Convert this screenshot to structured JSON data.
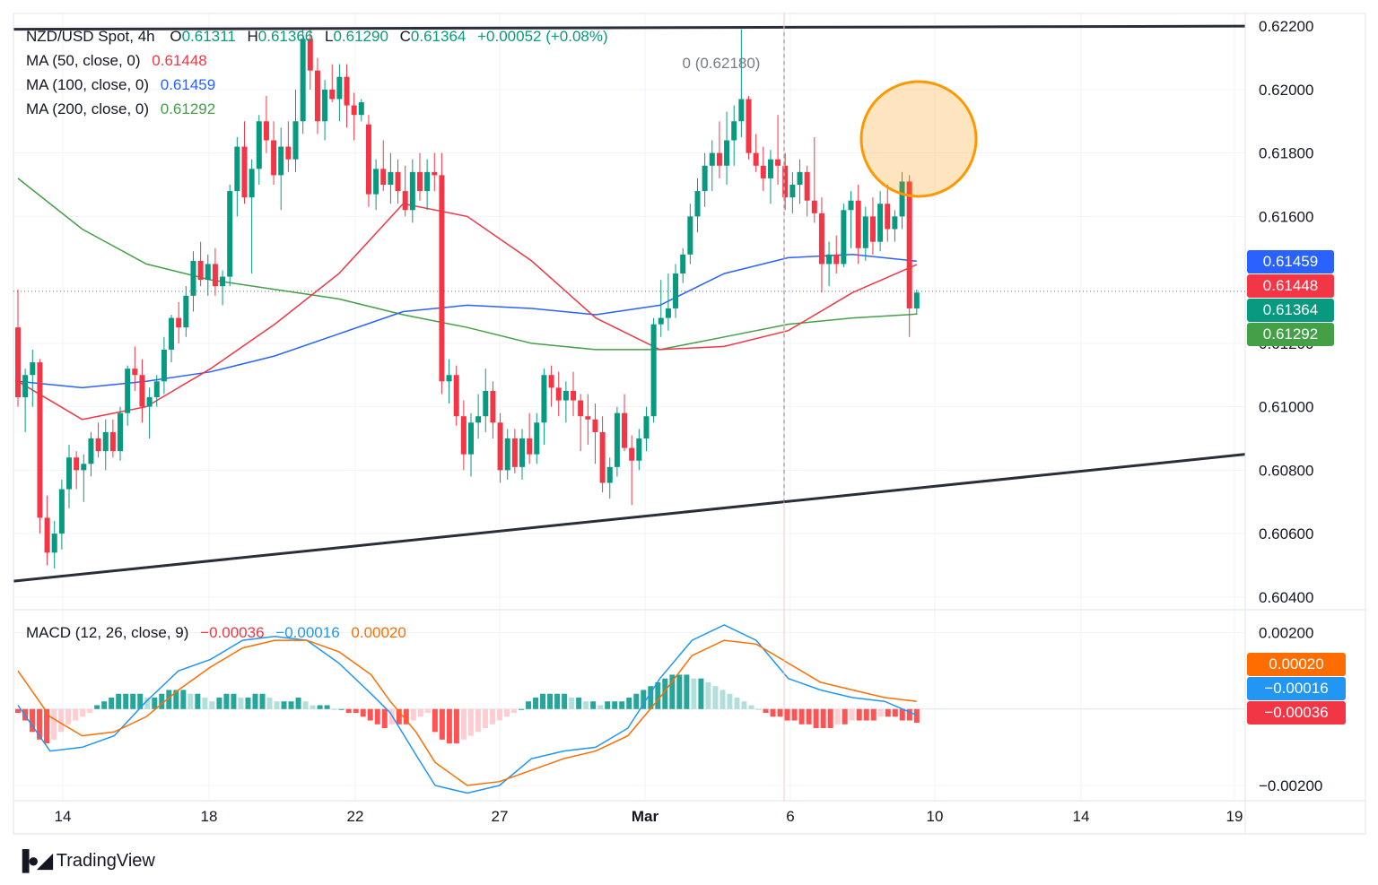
{
  "header": {
    "symbol": "NZD/USD Spot, 4h",
    "open_label": "O",
    "open": "0.61311",
    "high_label": "H",
    "high": "0.61366",
    "low_label": "L",
    "low": "0.61290",
    "close_label": "C",
    "close": "0.61364",
    "change": "+0.00052 (+0.08%)"
  },
  "indicators": {
    "ma50": {
      "label": "MA (50, close, 0)",
      "value": "0.61448",
      "color": "#f23645"
    },
    "ma100": {
      "label": "MA (100, close, 0)",
      "value": "0.61459",
      "color": "#2962ff"
    },
    "ma200": {
      "label": "MA (200, close, 0)",
      "value": "0.61292",
      "color": "#43a047"
    },
    "macd": {
      "label": "MACD (12, 26, close, 9)",
      "hist": "−0.00036",
      "macd": "−0.00016",
      "signal": "0.00020"
    }
  },
  "level_label": "0 (0.62180)",
  "price_axis": {
    "ticks": [
      "0.62200",
      "0.62000",
      "0.61800",
      "0.61600",
      "0.61200",
      "0.61000",
      "0.60800",
      "0.60600",
      "0.60400"
    ],
    "badges": [
      {
        "name": "ma100-badge",
        "text": "0.61459",
        "color": "#2962ff"
      },
      {
        "name": "ma50-badge",
        "text": "0.61448",
        "color": "#f23645"
      },
      {
        "name": "last-price-badge",
        "text": "0.61364",
        "color": "#089981"
      },
      {
        "name": "ma200-badge",
        "text": "0.61292",
        "color": "#43a047"
      }
    ]
  },
  "macd_axis": {
    "ticks": [
      "0.00200",
      "−0.00200"
    ],
    "badges": [
      {
        "name": "signal-badge",
        "text": "0.00020",
        "color": "#ff6d00"
      },
      {
        "name": "macd-line-badge",
        "text": "−0.00016",
        "color": "#2196f3"
      },
      {
        "name": "histogram-badge",
        "text": "−0.00036",
        "color": "#f23645"
      }
    ]
  },
  "time_axis": [
    "14",
    "18",
    "22",
    "27",
    "Mar",
    "6",
    "10",
    "14",
    "19"
  ],
  "brand": "TradingView",
  "chart_data": {
    "type": "candlestick",
    "instrument": "NZD/USD Spot",
    "timeframe": "4h",
    "ylim": [
      0.6036,
      0.6224
    ],
    "candles": [
      [
        0.6125,
        0.6137,
        0.61,
        0.6103
      ],
      [
        0.6103,
        0.6112,
        0.6092,
        0.611
      ],
      [
        0.611,
        0.6118,
        0.61,
        0.6114
      ],
      [
        0.6114,
        0.6115,
        0.606,
        0.6065
      ],
      [
        0.6065,
        0.6072,
        0.605,
        0.6054
      ],
      [
        0.6054,
        0.6064,
        0.6049,
        0.606
      ],
      [
        0.606,
        0.6077,
        0.6055,
        0.6074
      ],
      [
        0.6074,
        0.6088,
        0.6068,
        0.6084
      ],
      [
        0.6084,
        0.6086,
        0.6074,
        0.608
      ],
      [
        0.608,
        0.6085,
        0.607,
        0.6082
      ],
      [
        0.6082,
        0.6092,
        0.6078,
        0.609
      ],
      [
        0.609,
        0.6095,
        0.6084,
        0.6086
      ],
      [
        0.6086,
        0.6096,
        0.608,
        0.6092
      ],
      [
        0.6092,
        0.6096,
        0.6084,
        0.6086
      ],
      [
        0.6086,
        0.61,
        0.6083,
        0.6098
      ],
      [
        0.6098,
        0.6113,
        0.6094,
        0.6112
      ],
      [
        0.6112,
        0.6119,
        0.6105,
        0.611
      ],
      [
        0.611,
        0.6115,
        0.6095,
        0.61
      ],
      [
        0.61,
        0.6106,
        0.609,
        0.6103
      ],
      [
        0.6103,
        0.611,
        0.61,
        0.6108
      ],
      [
        0.6108,
        0.6122,
        0.6104,
        0.6118
      ],
      [
        0.6118,
        0.6129,
        0.6114,
        0.6128
      ],
      [
        0.6128,
        0.6133,
        0.612,
        0.6125
      ],
      [
        0.6125,
        0.6138,
        0.6122,
        0.6135
      ],
      [
        0.6135,
        0.6149,
        0.613,
        0.6146
      ],
      [
        0.6146,
        0.6152,
        0.6138,
        0.614
      ],
      [
        0.614,
        0.6148,
        0.6135,
        0.6145
      ],
      [
        0.6145,
        0.615,
        0.6135,
        0.6138
      ],
      [
        0.6138,
        0.6143,
        0.6132,
        0.6141
      ],
      [
        0.6141,
        0.617,
        0.6138,
        0.6168
      ],
      [
        0.6168,
        0.6185,
        0.616,
        0.6182
      ],
      [
        0.6182,
        0.619,
        0.6164,
        0.6166
      ],
      [
        0.6166,
        0.6178,
        0.6142,
        0.6175
      ],
      [
        0.6175,
        0.6192,
        0.617,
        0.619
      ],
      [
        0.619,
        0.6198,
        0.618,
        0.6184
      ],
      [
        0.6184,
        0.619,
        0.617,
        0.6173
      ],
      [
        0.6173,
        0.6188,
        0.6162,
        0.6182
      ],
      [
        0.6182,
        0.619,
        0.6174,
        0.6178
      ],
      [
        0.6178,
        0.62,
        0.6174,
        0.619
      ],
      [
        0.619,
        0.6219,
        0.6186,
        0.6216
      ],
      [
        0.6216,
        0.6219,
        0.62,
        0.6206
      ],
      [
        0.6206,
        0.621,
        0.6186,
        0.619
      ],
      [
        0.619,
        0.6203,
        0.6184,
        0.62
      ],
      [
        0.62,
        0.6208,
        0.6196,
        0.6197
      ],
      [
        0.6197,
        0.6208,
        0.619,
        0.6204
      ],
      [
        0.6204,
        0.6208,
        0.6188,
        0.6195
      ],
      [
        0.6195,
        0.6199,
        0.6184,
        0.6192
      ],
      [
        0.6192,
        0.6197,
        0.619,
        0.6196
      ],
      [
        0.6189,
        0.6192,
        0.6163,
        0.6167
      ],
      [
        0.6167,
        0.6178,
        0.6162,
        0.6175
      ],
      [
        0.6175,
        0.6184,
        0.6168,
        0.617
      ],
      [
        0.617,
        0.618,
        0.6164,
        0.6174
      ],
      [
        0.6174,
        0.6178,
        0.6164,
        0.6168
      ],
      [
        0.6168,
        0.6176,
        0.616,
        0.6162
      ],
      [
        0.6162,
        0.6178,
        0.6158,
        0.6174
      ],
      [
        0.6174,
        0.618,
        0.6165,
        0.6168
      ],
      [
        0.6168,
        0.6178,
        0.6162,
        0.6174
      ],
      [
        0.6174,
        0.618,
        0.6168,
        0.6173
      ],
      [
        0.6173,
        0.618,
        0.6104,
        0.6108
      ],
      [
        0.6108,
        0.6115,
        0.6101,
        0.611
      ],
      [
        0.611,
        0.6113,
        0.6094,
        0.6097
      ],
      [
        0.6097,
        0.6102,
        0.608,
        0.6085
      ],
      [
        0.6085,
        0.6098,
        0.6078,
        0.6095
      ],
      [
        0.6095,
        0.6104,
        0.609,
        0.6097
      ],
      [
        0.6097,
        0.6112,
        0.6092,
        0.6105
      ],
      [
        0.6105,
        0.6108,
        0.609,
        0.6095
      ],
      [
        0.6095,
        0.6098,
        0.6076,
        0.608
      ],
      [
        0.608,
        0.6093,
        0.6077,
        0.609
      ],
      [
        0.609,
        0.6093,
        0.6079,
        0.6081
      ],
      [
        0.6081,
        0.6093,
        0.6077,
        0.609
      ],
      [
        0.609,
        0.6098,
        0.6082,
        0.6085
      ],
      [
        0.6085,
        0.6098,
        0.6082,
        0.6095
      ],
      [
        0.6095,
        0.6112,
        0.6088,
        0.611
      ],
      [
        0.611,
        0.6113,
        0.61,
        0.6106
      ],
      [
        0.6106,
        0.6111,
        0.6097,
        0.6102
      ],
      [
        0.6102,
        0.6108,
        0.6095,
        0.6105
      ],
      [
        0.6105,
        0.6111,
        0.6097,
        0.6102
      ],
      [
        0.6102,
        0.6104,
        0.6086,
        0.6097
      ],
      [
        0.6097,
        0.6104,
        0.6088,
        0.6096
      ],
      [
        0.6096,
        0.6101,
        0.6082,
        0.6092
      ],
      [
        0.6092,
        0.6097,
        0.6073,
        0.6076
      ],
      [
        0.6076,
        0.6084,
        0.6071,
        0.6081
      ],
      [
        0.6081,
        0.61,
        0.6078,
        0.6098
      ],
      [
        0.6098,
        0.6104,
        0.6086,
        0.6087
      ],
      [
        0.6087,
        0.6091,
        0.6069,
        0.6083
      ],
      [
        0.6083,
        0.6093,
        0.608,
        0.609
      ],
      [
        0.609,
        0.61,
        0.6086,
        0.6097
      ],
      [
        0.6097,
        0.6128,
        0.6095,
        0.6126
      ],
      [
        0.6126,
        0.614,
        0.6122,
        0.6128
      ],
      [
        0.6128,
        0.6142,
        0.6124,
        0.6131
      ],
      [
        0.6131,
        0.6145,
        0.6128,
        0.6142
      ],
      [
        0.6142,
        0.615,
        0.6139,
        0.6148
      ],
      [
        0.6148,
        0.6164,
        0.6145,
        0.616
      ],
      [
        0.616,
        0.6172,
        0.6155,
        0.6168
      ],
      [
        0.6168,
        0.618,
        0.6163,
        0.6176
      ],
      [
        0.6176,
        0.6184,
        0.6168,
        0.618
      ],
      [
        0.618,
        0.619,
        0.6172,
        0.6176
      ],
      [
        0.6176,
        0.6193,
        0.617,
        0.6184
      ],
      [
        0.6184,
        0.6195,
        0.6176,
        0.619
      ],
      [
        0.619,
        0.6219,
        0.6185,
        0.6197
      ],
      [
        0.6197,
        0.6198,
        0.6178,
        0.618
      ],
      [
        0.618,
        0.6186,
        0.6174,
        0.6176
      ],
      [
        0.6176,
        0.6182,
        0.6168,
        0.6172
      ],
      [
        0.6172,
        0.6181,
        0.6164,
        0.6178
      ],
      [
        0.6178,
        0.6192,
        0.617,
        0.6176
      ],
      [
        0.6176,
        0.618,
        0.6162,
        0.6166
      ],
      [
        0.6166,
        0.6174,
        0.6161,
        0.617
      ],
      [
        0.617,
        0.6178,
        0.6164,
        0.6174
      ],
      [
        0.6174,
        0.6176,
        0.616,
        0.6165
      ],
      [
        0.6165,
        0.6185,
        0.6158,
        0.6161
      ],
      [
        0.6161,
        0.6166,
        0.6136,
        0.6145
      ],
      [
        0.6145,
        0.6152,
        0.6138,
        0.6148
      ],
      [
        0.6148,
        0.6154,
        0.6142,
        0.6145
      ],
      [
        0.6145,
        0.6164,
        0.6144,
        0.6162
      ],
      [
        0.6162,
        0.6168,
        0.615,
        0.6165
      ],
      [
        0.6165,
        0.617,
        0.6145,
        0.615
      ],
      [
        0.615,
        0.6163,
        0.6146,
        0.616
      ],
      [
        0.616,
        0.6166,
        0.6148,
        0.6152
      ],
      [
        0.6152,
        0.6168,
        0.6149,
        0.6164
      ],
      [
        0.6164,
        0.617,
        0.6152,
        0.6156
      ],
      [
        0.6156,
        0.6162,
        0.6152,
        0.616
      ],
      [
        0.616,
        0.6174,
        0.6156,
        0.6171
      ],
      [
        0.6171,
        0.6173,
        0.6122,
        0.6131
      ],
      [
        0.6131,
        0.6137,
        0.6129,
        0.6136
      ]
    ],
    "ma50": [
      [
        0,
        0.6108
      ],
      [
        10,
        0.6096
      ],
      [
        20,
        0.61
      ],
      [
        30,
        0.6112
      ],
      [
        40,
        0.6126
      ],
      [
        50,
        0.6142
      ],
      [
        60,
        0.6164
      ],
      [
        70,
        0.616
      ],
      [
        80,
        0.6146
      ],
      [
        90,
        0.6128
      ],
      [
        100,
        0.6118
      ],
      [
        110,
        0.6119
      ],
      [
        120,
        0.6124
      ],
      [
        130,
        0.6136
      ],
      [
        140,
        0.61448
      ]
    ],
    "ma100": [
      [
        0,
        0.6108
      ],
      [
        10,
        0.6106
      ],
      [
        20,
        0.6108
      ],
      [
        30,
        0.6111
      ],
      [
        40,
        0.6116
      ],
      [
        50,
        0.6123
      ],
      [
        60,
        0.613
      ],
      [
        70,
        0.6132
      ],
      [
        80,
        0.6131
      ],
      [
        90,
        0.6129
      ],
      [
        100,
        0.6132
      ],
      [
        110,
        0.6142
      ],
      [
        120,
        0.6147
      ],
      [
        130,
        0.6148
      ],
      [
        140,
        0.61459
      ]
    ],
    "ma200": [
      [
        0,
        0.6172
      ],
      [
        10,
        0.6156
      ],
      [
        20,
        0.6145
      ],
      [
        30,
        0.614
      ],
      [
        40,
        0.6137
      ],
      [
        50,
        0.6134
      ],
      [
        60,
        0.6129
      ],
      [
        70,
        0.6125
      ],
      [
        80,
        0.612
      ],
      [
        90,
        0.6118
      ],
      [
        100,
        0.6118
      ],
      [
        110,
        0.6122
      ],
      [
        120,
        0.6126
      ],
      [
        130,
        0.6128
      ],
      [
        140,
        0.61292
      ]
    ],
    "trendlines": [
      {
        "name": "resistance",
        "from": [
          "Feb 12",
          0.6219
        ],
        "to": [
          "Mar 19",
          0.622
        ]
      },
      {
        "name": "support",
        "from": [
          "Feb 12",
          0.6045
        ],
        "to": [
          "Mar 19",
          0.6085
        ]
      }
    ],
    "macd": {
      "ylim": [
        -0.0024,
        0.0026
      ],
      "macd_line": [
        [
          0,
          0.0001
        ],
        [
          5,
          -0.0011
        ],
        [
          10,
          -0.001
        ],
        [
          15,
          -0.0007
        ],
        [
          20,
          0.0002
        ],
        [
          25,
          0.001
        ],
        [
          30,
          0.0013
        ],
        [
          35,
          0.0018
        ],
        [
          40,
          0.0019
        ],
        [
          45,
          0.0018
        ],
        [
          50,
          0.0012
        ],
        [
          55,
          0.0004
        ],
        [
          58,
          -0.0001
        ],
        [
          62,
          -0.0012
        ],
        [
          65,
          -0.002
        ],
        [
          70,
          -0.0022
        ],
        [
          75,
          -0.002
        ],
        [
          80,
          -0.0013
        ],
        [
          85,
          -0.0011
        ],
        [
          90,
          -0.001
        ],
        [
          95,
          -0.0005
        ],
        [
          100,
          0.0008
        ],
        [
          105,
          0.0018
        ],
        [
          110,
          0.0022
        ],
        [
          115,
          0.0018
        ],
        [
          120,
          0.0008
        ],
        [
          125,
          0.0005
        ],
        [
          130,
          0.0003
        ],
        [
          135,
          0.0002
        ],
        [
          140,
          -0.00016
        ]
      ],
      "signal_line": [
        [
          0,
          0.001
        ],
        [
          5,
          -0.0002
        ],
        [
          10,
          -0.0007
        ],
        [
          15,
          -0.0006
        ],
        [
          20,
          -0.0002
        ],
        [
          25,
          0.0005
        ],
        [
          30,
          0.0011
        ],
        [
          35,
          0.0016
        ],
        [
          40,
          0.0018
        ],
        [
          45,
          0.0018
        ],
        [
          50,
          0.0015
        ],
        [
          55,
          0.0009
        ],
        [
          58,
          0.0002
        ],
        [
          62,
          -0.0006
        ],
        [
          65,
          -0.0014
        ],
        [
          70,
          -0.002
        ],
        [
          75,
          -0.0019
        ],
        [
          80,
          -0.0016
        ],
        [
          85,
          -0.0013
        ],
        [
          90,
          -0.0011
        ],
        [
          95,
          -0.0007
        ],
        [
          100,
          0.0003
        ],
        [
          105,
          0.0014
        ],
        [
          110,
          0.0018
        ],
        [
          115,
          0.0017
        ],
        [
          120,
          0.0012
        ],
        [
          125,
          0.0007
        ],
        [
          130,
          0.0005
        ],
        [
          135,
          0.0003
        ],
        [
          140,
          0.0002
        ]
      ],
      "histogram": [
        -0.0001,
        -0.0003,
        -0.0006,
        -0.0008,
        -0.0009,
        -0.0008,
        -0.0006,
        -0.0004,
        -0.0003,
        -0.0002,
        -0.0001,
        0.0001,
        0.0002,
        0.0003,
        0.0004,
        0.0004,
        0.0004,
        0.0004,
        0.0003,
        0.0003,
        0.0004,
        0.0005,
        0.0005,
        0.0005,
        0.0004,
        0.0004,
        0.0003,
        0.0002,
        0.0003,
        0.0004,
        0.0004,
        0.0003,
        0.0003,
        0.0004,
        0.0004,
        0.0003,
        0.0002,
        0.0002,
        0.0002,
        0.0003,
        0.0002,
        0.0001,
        0.0001,
        0.0001,
        0.0,
        0.0,
        -0.0001,
        -0.0001,
        -0.0002,
        -0.0003,
        -0.0004,
        -0.0005,
        -0.0004,
        -0.0004,
        -0.0004,
        -0.0003,
        -0.0002,
        -0.0001,
        -0.0006,
        -0.0008,
        -0.0009,
        -0.0009,
        -0.0008,
        -0.0007,
        -0.0006,
        -0.0005,
        -0.0004,
        -0.0003,
        -0.0002,
        -0.0001,
        0.0,
        0.0002,
        0.0003,
        0.0004,
        0.0004,
        0.0004,
        0.0004,
        0.0003,
        0.0003,
        0.0002,
        0.0002,
        0.0001,
        0.0002,
        0.0002,
        0.0002,
        0.0003,
        0.0004,
        0.0005,
        0.0006,
        0.0007,
        0.0008,
        0.0009,
        0.0009,
        0.0009,
        0.0008,
        0.0008,
        0.0007,
        0.0006,
        0.0005,
        0.0004,
        0.0003,
        0.0002,
        0.0001,
        0.0,
        -0.0001,
        -0.0002,
        -0.0002,
        -0.0003,
        -0.0003,
        -0.0004,
        -0.0004,
        -0.0005,
        -0.0005,
        -0.0005,
        -0.0004,
        -0.0004,
        -0.0003,
        -0.0003,
        -0.0003,
        -0.0003,
        -0.0002,
        -0.0002,
        -0.0002,
        -0.0003,
        -0.0003,
        -0.00036
      ]
    }
  }
}
